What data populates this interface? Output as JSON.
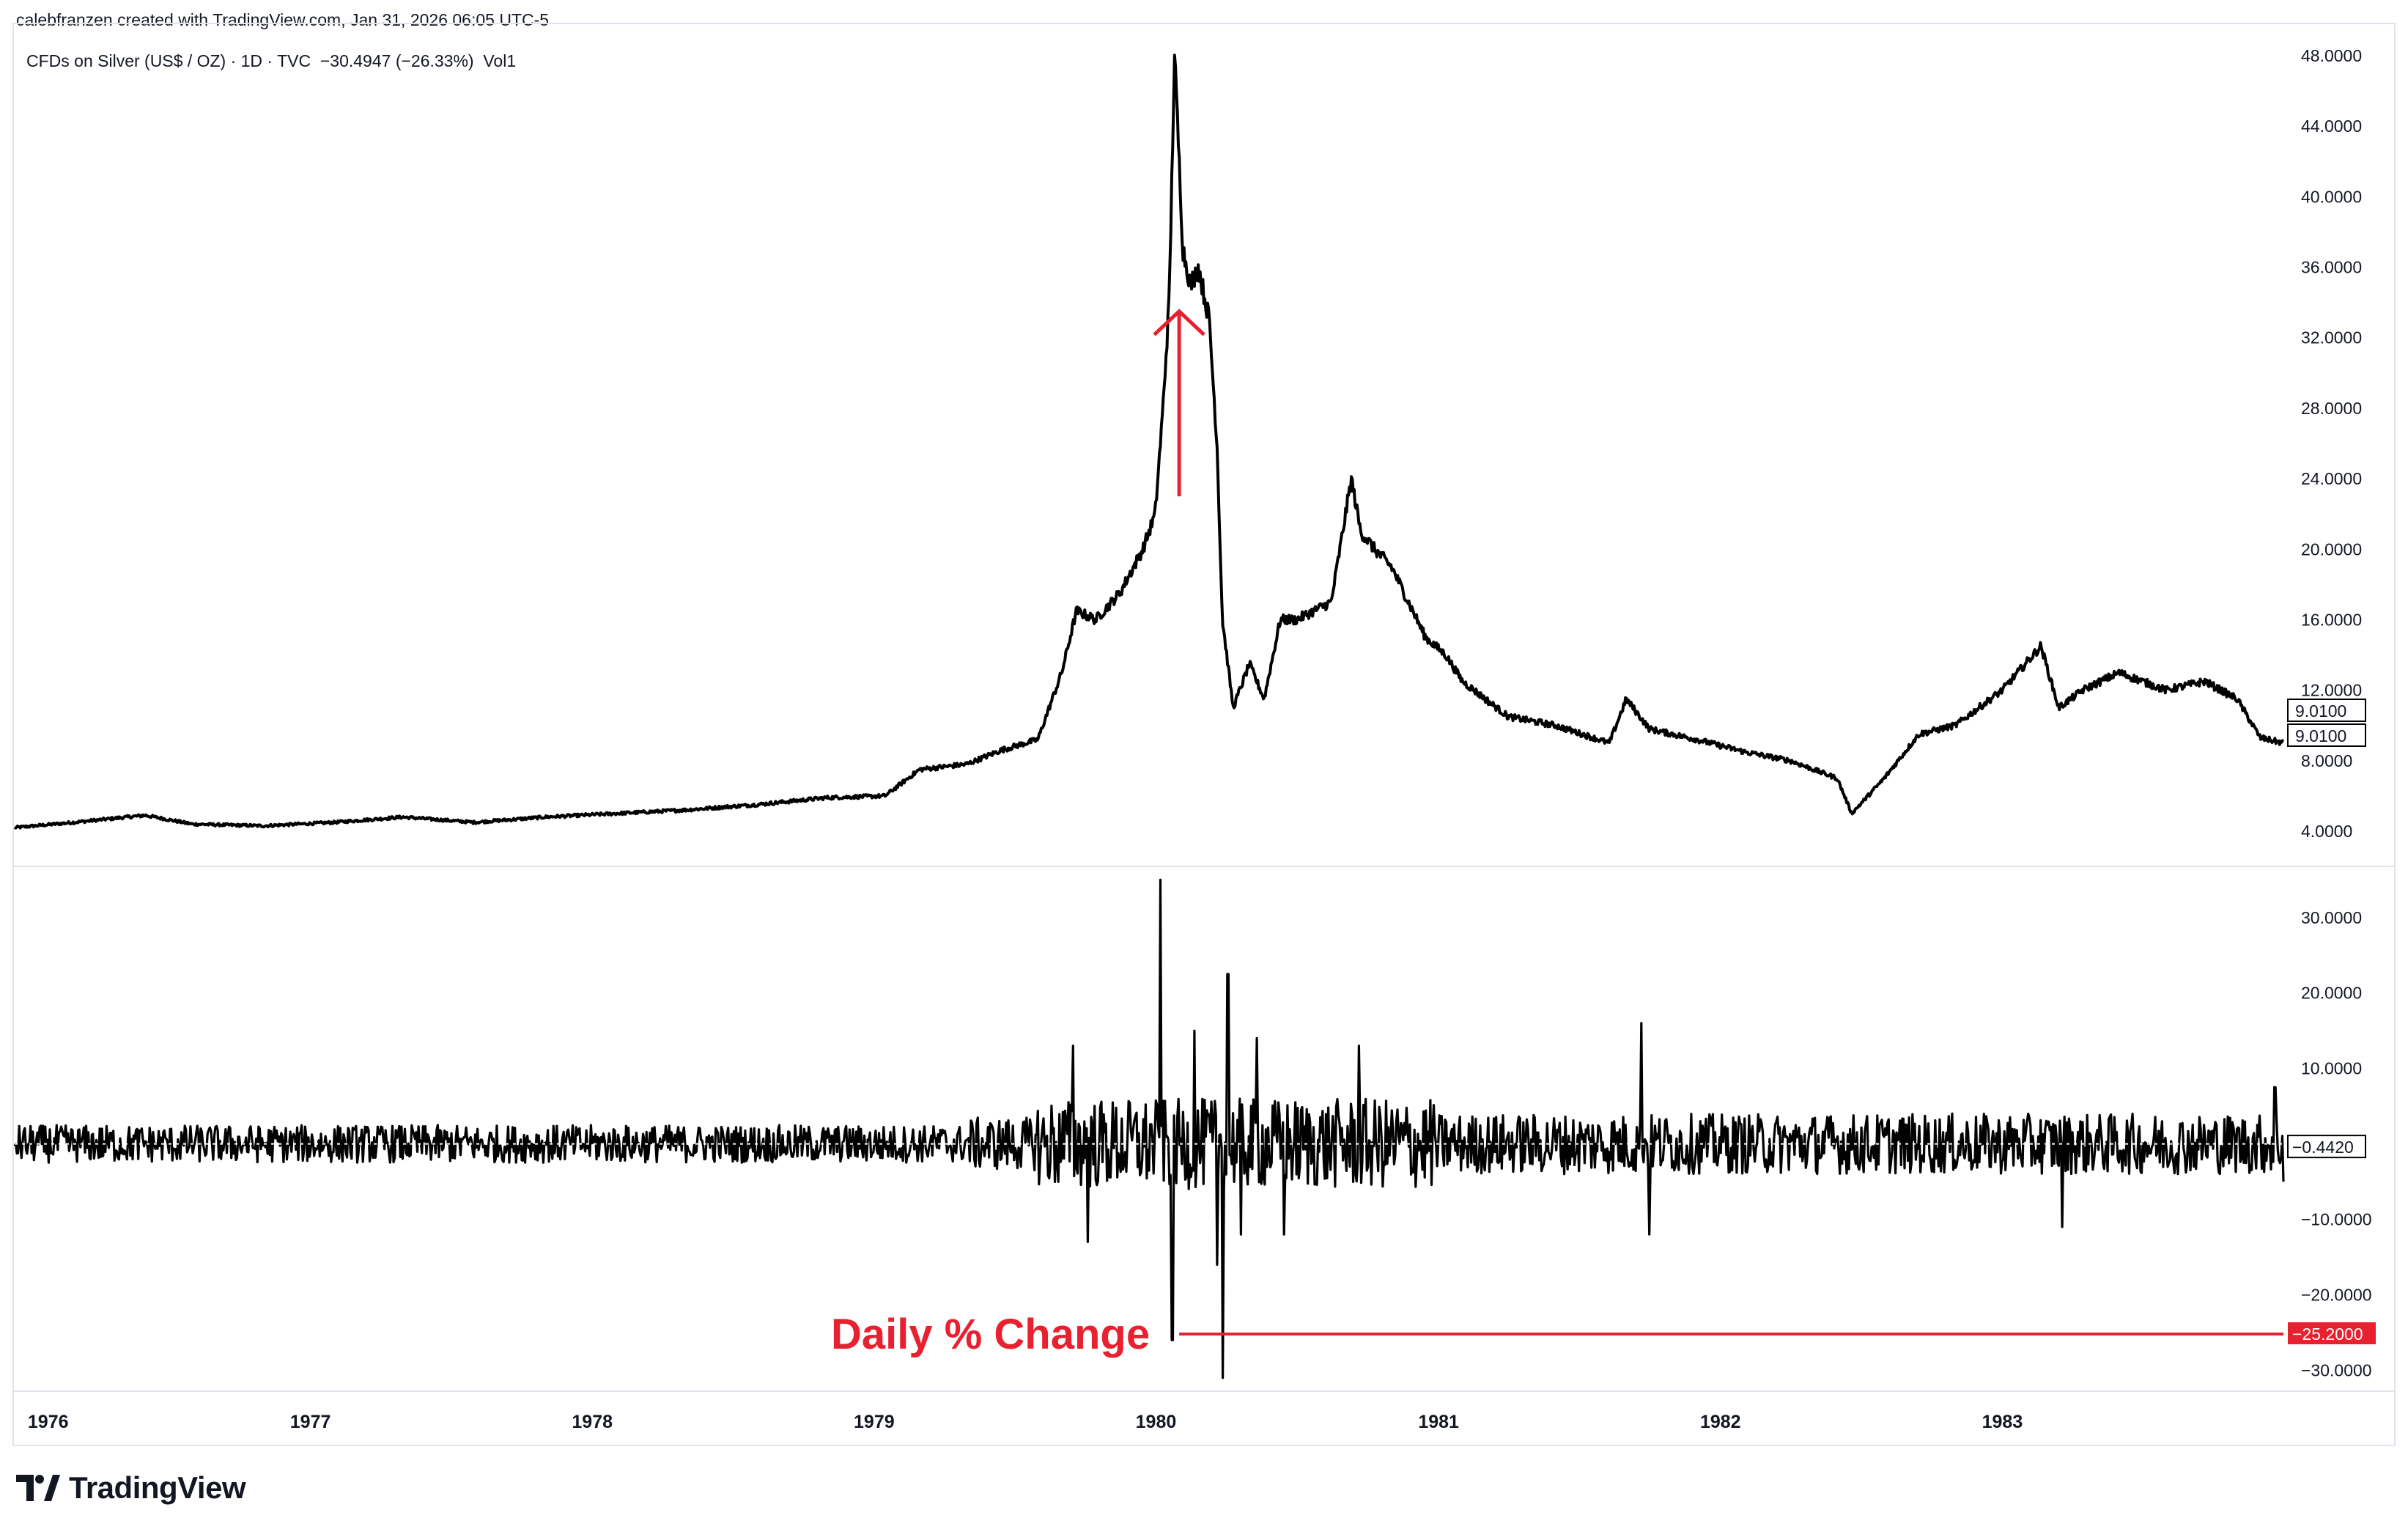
{
  "header": {
    "attribution": "calebfranzen created with TradingView.com, Jan 31, 2026 06:05 UTC-5"
  },
  "legend": {
    "symbol": "CFDs on Silver (US$ / OZ) · 1D · TVC",
    "change": "−30.4947 (−26.33%)",
    "indicator": "Vol1"
  },
  "brand": {
    "logo_text": "TradingView"
  },
  "colors": {
    "line": "#000000",
    "annotation": "#e8202f",
    "grid_border": "#e0e3eb",
    "text": "#131722"
  },
  "chart_data": [
    {
      "type": "line",
      "title": "",
      "x_axis": {
        "type": "date",
        "range": [
          "1975-12-15",
          "1983-12-31"
        ],
        "tick_labels": [
          "1976",
          "1977",
          "1978",
          "1979",
          "1980",
          "1981",
          "1982",
          "1983"
        ]
      },
      "y_axis": {
        "range": [
          2.5,
          49.5
        ],
        "tick_values": [
          4,
          8,
          12,
          16,
          20,
          24,
          28,
          32,
          36,
          40,
          44,
          48
        ],
        "tick_labels": [
          "4.0000",
          "8.0000",
          "12.0000",
          "16.0000",
          "20.0000",
          "24.0000",
          "28.0000",
          "32.0000",
          "36.0000",
          "40.0000",
          "44.0000",
          "48.0000"
        ]
      },
      "series": [
        {
          "x": [
            "1975-12-15",
            "1976-03-01",
            "1976-06-01",
            "1976-08-01",
            "1976-11-01",
            "1977-02-01",
            "1977-05-01",
            "1977-08-01",
            "1977-11-01",
            "1978-02-01",
            "1978-05-01",
            "1978-08-01",
            "1978-11-01",
            "1979-01-15",
            "1979-03-01",
            "1979-05-01",
            "1979-06-15",
            "1979-08-01",
            "1979-09-01",
            "1979-09-20",
            "1979-10-15",
            "1979-11-15",
            "1979-12-15",
            "1979-12-31",
            "1980-01-10",
            "1980-01-18",
            "1980-01-25",
            "1980-02-05",
            "1980-02-15",
            "1980-02-25",
            "1980-03-10",
            "1980-03-20",
            "1980-03-27",
            "1980-04-10",
            "1980-05-01",
            "1980-05-20",
            "1980-06-10",
            "1980-07-01",
            "1980-08-15",
            "1980-09-10",
            "1980-09-22",
            "1980-10-10",
            "1980-11-01",
            "1980-12-15",
            "1981-01-10",
            "1981-02-01",
            "1981-04-01",
            "1981-06-01",
            "1981-08-10",
            "1981-09-01",
            "1981-10-01",
            "1981-12-01",
            "1982-02-01",
            "1982-04-01",
            "1982-06-01",
            "1982-06-20",
            "1982-08-01",
            "1982-09-15",
            "1982-11-01",
            "1983-01-01",
            "1983-02-20",
            "1983-03-15",
            "1983-04-15",
            "1983-06-01",
            "1983-08-01",
            "1983-09-20",
            "1983-11-01",
            "1983-12-01",
            "1983-12-31"
          ],
          "y": [
            4.2,
            4.5,
            4.9,
            4.4,
            4.3,
            4.5,
            4.8,
            4.5,
            4.8,
            5.0,
            5.2,
            5.5,
            5.9,
            6.0,
            7.5,
            7.8,
            8.6,
            9.2,
            13.0,
            16.5,
            16.0,
            17.5,
            20.0,
            22.0,
            28.0,
            34.0,
            48.0,
            37.0,
            35.0,
            36.0,
            33.0,
            26.0,
            16.0,
            11.0,
            13.5,
            11.5,
            16.0,
            16.0,
            17.0,
            24.0,
            21.0,
            20.0,
            19.0,
            15.0,
            14.0,
            12.5,
            10.5,
            10.0,
            9.0,
            11.5,
            9.8,
            9.2,
            8.5,
            8.0,
            7.0,
            5.0,
            7.0,
            9.5,
            10.0,
            12.0,
            14.5,
            11.0,
            12.0,
            13.0,
            12.0,
            12.5,
            11.5,
            9.3,
            9.0
          ]
        }
      ],
      "last_value_labels": [
        "9.0100",
        "9.0100"
      ],
      "annotations": [
        {
          "type": "arrow",
          "direction": "up",
          "from": {
            "x": "1980-01-31",
            "y": 23.0
          },
          "to": {
            "x": "1980-01-31",
            "y": 33.5
          }
        }
      ]
    },
    {
      "type": "line",
      "title": "",
      "ylabel": "",
      "x_axis": {
        "type": "date",
        "range": [
          "1975-12-15",
          "1983-12-31"
        ]
      },
      "y_axis": {
        "range": [
          -32,
          36
        ],
        "tick_values": [
          -30,
          -20,
          -10,
          10,
          20,
          30
        ],
        "tick_labels": [
          "−30.0000",
          "−20.0000",
          "−10.0000",
          "10.0000",
          "20.0000",
          "30.0000"
        ]
      },
      "series": [
        {
          "noise_amplitude_by_period": [
            {
              "from": "1975-12-15",
              "to": "1979-05-01",
              "amplitude": 2.5
            },
            {
              "from": "1979-05-01",
              "to": "1979-08-01",
              "amplitude": 3.5
            },
            {
              "from": "1979-08-01",
              "to": "1980-12-31",
              "amplitude": 6.0
            },
            {
              "from": "1980-12-31",
              "to": "1983-12-31",
              "amplitude": 4.0
            }
          ],
          "spikes": [
            {
              "x": "1979-09-15",
              "y": 13
            },
            {
              "x": "1979-10-05",
              "y": -13
            },
            {
              "x": "1980-01-07",
              "y": 35
            },
            {
              "x": "1980-01-22",
              "y": -26
            },
            {
              "x": "1980-02-20",
              "y": 15
            },
            {
              "x": "1980-03-20",
              "y": -16
            },
            {
              "x": "1980-03-27",
              "y": -31
            },
            {
              "x": "1980-04-03",
              "y": 22.5
            },
            {
              "x": "1980-04-20",
              "y": -12
            },
            {
              "x": "1980-05-10",
              "y": 14
            },
            {
              "x": "1980-06-15",
              "y": -12
            },
            {
              "x": "1980-09-20",
              "y": 13
            },
            {
              "x": "1981-09-20",
              "y": 16
            },
            {
              "x": "1981-10-01",
              "y": -12
            },
            {
              "x": "1983-03-20",
              "y": -11
            },
            {
              "x": "1983-12-20",
              "y": 7.5
            },
            {
              "x": "1983-12-31",
              "y": -5
            }
          ]
        }
      ],
      "last_value_label": "−0.4420",
      "annotations": [
        {
          "type": "horizontal_line",
          "y": -25.2,
          "from_x": "1980-01-31",
          "label": "Daily % Change",
          "value_label": "−25.2000"
        }
      ]
    }
  ]
}
